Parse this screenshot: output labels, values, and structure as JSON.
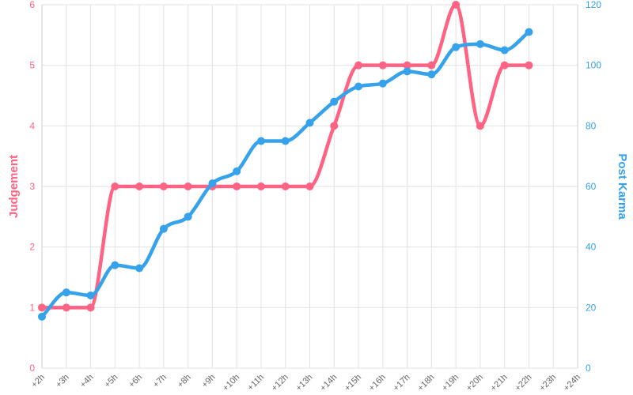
{
  "chart_data": {
    "type": "line",
    "title": "",
    "categories": [
      "+2h",
      "+3h",
      "+4h",
      "+5h",
      "+6h",
      "+7h",
      "+8h",
      "+9h",
      "+10h",
      "+11h",
      "+12h",
      "+13h",
      "+14h",
      "+15h",
      "+16h",
      "+17h",
      "+18h",
      "+19h",
      "+20h",
      "+21h",
      "+22h",
      "+23h",
      "+24h"
    ],
    "series": [
      {
        "name": "Judgement",
        "axis": "left",
        "color": "#ff6384",
        "values": [
          1,
          1,
          1,
          3,
          3,
          3,
          3,
          3,
          3,
          3,
          3,
          3,
          4,
          5,
          5,
          5,
          5,
          6,
          4,
          5,
          5,
          null,
          null
        ]
      },
      {
        "name": "Post Karma",
        "axis": "right",
        "color": "#36a2eb",
        "values": [
          17,
          25,
          24,
          34,
          33,
          46,
          50,
          61,
          65,
          75,
          75,
          81,
          88,
          93,
          94,
          98,
          97,
          106,
          107,
          105,
          111,
          null,
          null
        ]
      }
    ],
    "ylabel_left": "Judgement",
    "ylabel_right": "Post Karma",
    "ylim_left": [
      0,
      6
    ],
    "yticks_left": [
      "0",
      "1",
      "2",
      "3",
      "4",
      "5",
      "6"
    ],
    "ylim_right": [
      0,
      120
    ],
    "yticks_right": [
      "0",
      "20",
      "40",
      "60",
      "80",
      "100",
      "120"
    ],
    "grid": true,
    "legend": "none"
  }
}
